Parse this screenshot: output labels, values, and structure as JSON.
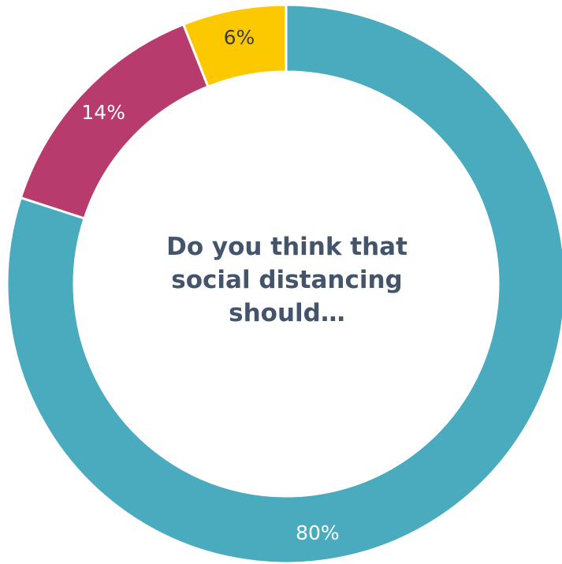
{
  "chart_data": {
    "type": "pie",
    "donut": true,
    "title": "Do you think that social distancing should…",
    "categories": [
      "",
      "",
      ""
    ],
    "values": [
      80,
      14,
      6
    ],
    "labels": [
      "80%",
      "14%",
      "6%"
    ],
    "colors": [
      "#4aabbe",
      "#b83b6e",
      "#fcc800"
    ],
    "label_colors": [
      "#ffffff",
      "#ffffff",
      "#3b3b3b"
    ],
    "legend": "none",
    "start_angle_deg": 0,
    "direction": "clockwise"
  }
}
